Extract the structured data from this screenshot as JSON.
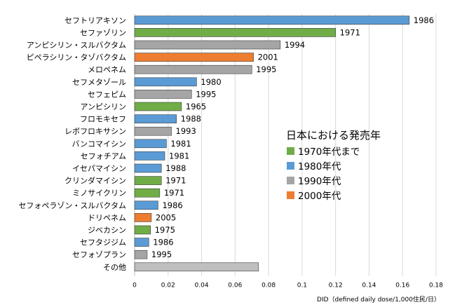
{
  "chart_data": {
    "type": "bar",
    "orientation": "horizontal",
    "xlabel": "DID（defined daily dose/1,000住民/日）",
    "xlim": [
      0,
      0.18
    ],
    "xticks": [
      0,
      0.02,
      0.04,
      0.06,
      0.08,
      0.1,
      0.12,
      0.14,
      0.16,
      0.18
    ],
    "grid": true,
    "legend_title": "日本における発売年",
    "legend_position": "right-middle",
    "legend": [
      {
        "key": "1970s",
        "label": "1970年代まで",
        "color": "#70ad47"
      },
      {
        "key": "1980s",
        "label": "1980年代",
        "color": "#5b9bd5"
      },
      {
        "key": "1990s",
        "label": "1990年代",
        "color": "#a5a5a5"
      },
      {
        "key": "2000s",
        "label": "2000年代",
        "color": "#ed7d31"
      }
    ],
    "other_color": "#bfbfbf",
    "bars": [
      {
        "name": "セフトリアキソン",
        "value": 0.164,
        "year": "1986",
        "group": "1980s"
      },
      {
        "name": "セファゾリン",
        "value": 0.12,
        "year": "1971",
        "group": "1970s"
      },
      {
        "name": "アンピシリン・スルバクタム",
        "value": 0.087,
        "year": "1994",
        "group": "1990s"
      },
      {
        "name": "ピペラシリン・タゾバクタム",
        "value": 0.071,
        "year": "2001",
        "group": "2000s"
      },
      {
        "name": "メロペネム",
        "value": 0.07,
        "year": "1995",
        "group": "1990s"
      },
      {
        "name": "セフメタゾール",
        "value": 0.037,
        "year": "1980",
        "group": "1980s"
      },
      {
        "name": "セフェピム",
        "value": 0.034,
        "year": "1995",
        "group": "1990s"
      },
      {
        "name": "アンピシリン",
        "value": 0.028,
        "year": "1965",
        "group": "1970s"
      },
      {
        "name": "フロモキセフ",
        "value": 0.025,
        "year": "1988",
        "group": "1980s"
      },
      {
        "name": "レボフロキサシン",
        "value": 0.022,
        "year": "1993",
        "group": "1990s"
      },
      {
        "name": "バンコマイシン",
        "value": 0.019,
        "year": "1981",
        "group": "1980s"
      },
      {
        "name": "セフォチアム",
        "value": 0.018,
        "year": "1981",
        "group": "1980s"
      },
      {
        "name": "イセパマイシン",
        "value": 0.016,
        "year": "1988",
        "group": "1980s"
      },
      {
        "name": "クリンダマイシン",
        "value": 0.016,
        "year": "1971",
        "group": "1970s"
      },
      {
        "name": "ミノサイクリン",
        "value": 0.015,
        "year": "1971",
        "group": "1970s"
      },
      {
        "name": "セフォペラゾン・スルバクタム",
        "value": 0.014,
        "year": "1986",
        "group": "1980s"
      },
      {
        "name": "ドリペネム",
        "value": 0.01,
        "year": "2005",
        "group": "2000s"
      },
      {
        "name": "ジベカシン",
        "value": 0.0095,
        "year": "1975",
        "group": "1970s"
      },
      {
        "name": "セフタジジム",
        "value": 0.0085,
        "year": "1986",
        "group": "1980s"
      },
      {
        "name": "セフォゾプラン",
        "value": 0.0075,
        "year": "1995",
        "group": "1990s"
      },
      {
        "name": "その他",
        "value": 0.074,
        "year": "",
        "group": "other"
      }
    ]
  }
}
